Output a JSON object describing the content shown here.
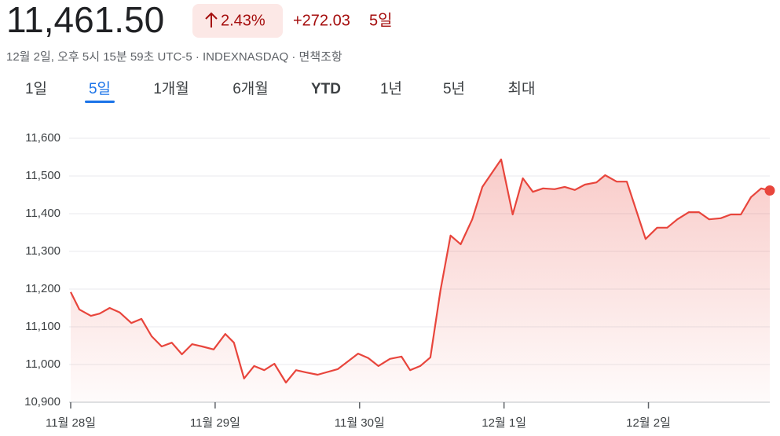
{
  "header": {
    "price": "11,461.50",
    "change_percent": "2.43%",
    "change": "+272.03",
    "period": "5일",
    "subtitle": "12월 2일, 오후 5시 15분 59초 UTC-5 · INDEXNASDAQ · 면책조항"
  },
  "tabs": {
    "items": [
      "1일",
      "5일",
      "1개월",
      "6개월",
      "YTD",
      "1년",
      "5년",
      "최대"
    ],
    "selected": 1
  },
  "chart_data": {
    "type": "line",
    "color": "#e8453c",
    "x": [
      0,
      0.06,
      0.14,
      0.2,
      0.27,
      0.34,
      0.42,
      0.49,
      0.56,
      0.63,
      0.7,
      0.77,
      0.84,
      0.91,
      0.99,
      1.07,
      1.13,
      1.2,
      1.27,
      1.34,
      1.41,
      1.49,
      1.56,
      1.63,
      1.71,
      1.85,
      1.99,
      2.06,
      2.13,
      2.21,
      2.29,
      2.35,
      2.42,
      2.49,
      2.56,
      2.63,
      2.7,
      2.78,
      2.85,
      2.98,
      3.06,
      3.13,
      3.2,
      3.27,
      3.35,
      3.42,
      3.49,
      3.56,
      3.64,
      3.7,
      3.78,
      3.85,
      3.98,
      4.06,
      4.13,
      4.2,
      4.28,
      4.35,
      4.42,
      4.5,
      4.57,
      4.64,
      4.71,
      4.78,
      4.84
    ],
    "values": [
      11192,
      11146,
      11129,
      11135,
      11150,
      11138,
      11110,
      11121,
      11075,
      11048,
      11058,
      11027,
      11054,
      11048,
      11040,
      11081,
      11058,
      10963,
      10996,
      10985,
      11002,
      10952,
      10985,
      10979,
      10973,
      10988,
      11029,
      11017,
      10996,
      11015,
      11021,
      10985,
      10996,
      11019,
      11196,
      11342,
      11319,
      11385,
      11471,
      11544,
      11398,
      11494,
      11458,
      11467,
      11465,
      11471,
      11463,
      11477,
      11483,
      11502,
      11485,
      11485,
      11333,
      11363,
      11363,
      11385,
      11404,
      11404,
      11385,
      11388,
      11398,
      11398,
      11444,
      11467,
      11461.5
    ],
    "xlim": [
      0,
      4.84
    ],
    "xticks": [
      {
        "value": 0,
        "label": "11월 28일"
      },
      {
        "value": 1,
        "label": "11월 29일"
      },
      {
        "value": 2,
        "label": "11월 30일"
      },
      {
        "value": 3,
        "label": "12월 1일"
      },
      {
        "value": 4,
        "label": "12월 2일"
      }
    ],
    "ylim": [
      10900,
      11600
    ],
    "yticks": [
      {
        "value": 10900,
        "label": "10,900"
      },
      {
        "value": 11000,
        "label": "11,000"
      },
      {
        "value": 11100,
        "label": "11,100"
      },
      {
        "value": 11200,
        "label": "11,200"
      },
      {
        "value": 11300,
        "label": "11,300"
      },
      {
        "value": 11400,
        "label": "11,400"
      },
      {
        "value": 11500,
        "label": "11,500"
      },
      {
        "value": 11600,
        "label": "11,600"
      }
    ],
    "grid": true
  }
}
